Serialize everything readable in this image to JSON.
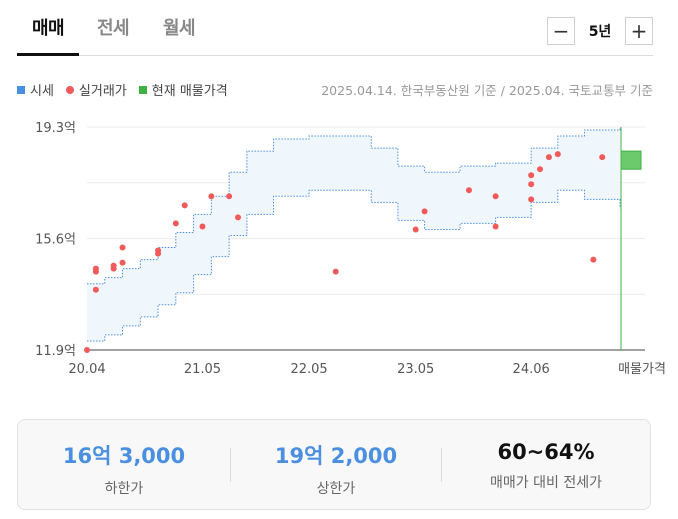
{
  "tabs": [
    {
      "label": "매매",
      "active": true
    },
    {
      "label": "전세",
      "active": false
    },
    {
      "label": "월세",
      "active": false
    }
  ],
  "period": {
    "minus_label": "−",
    "value_label": "5년",
    "plus_label": "+"
  },
  "legend": [
    {
      "label": "시세",
      "color": "#4a90e2",
      "shape": "square"
    },
    {
      "label": "실거래가",
      "color": "#f05a5a",
      "shape": "circle"
    },
    {
      "label": "현재 매물가격",
      "color": "#3cb043",
      "shape": "square"
    }
  ],
  "source_note": "2025.04.14. 한국부동산원 기준 / 2025.04. 국토교통부 기준",
  "chart_data": {
    "type": "scatter",
    "ylim": [
      11.9,
      19.3
    ],
    "y_ticks": [
      {
        "value": 19.3,
        "label": "19.3억"
      },
      {
        "value": 15.6,
        "label": "15.6억"
      },
      {
        "value": 11.9,
        "label": "11.9억"
      }
    ],
    "x_range": [
      "2020.04",
      "2025.04"
    ],
    "x_ticks": [
      {
        "value": "2020.04",
        "label": "20.04"
      },
      {
        "value": "2021.05",
        "label": "21.05"
      },
      {
        "value": "2022.05",
        "label": "22.05"
      },
      {
        "value": "2023.05",
        "label": "23.05"
      },
      {
        "value": "2024.06",
        "label": "24.06"
      }
    ],
    "x_extra_label": "매물가격",
    "band_color": "#4a90e2",
    "band": [
      {
        "x": "2020.04",
        "lower": 12.2,
        "upper": 14.1
      },
      {
        "x": "2020.06",
        "lower": 12.4,
        "upper": 14.3
      },
      {
        "x": "2020.08",
        "lower": 12.7,
        "upper": 14.6
      },
      {
        "x": "2020.10",
        "lower": 13.0,
        "upper": 14.9
      },
      {
        "x": "2020.12",
        "lower": 13.4,
        "upper": 15.3
      },
      {
        "x": "2021.02",
        "lower": 13.8,
        "upper": 15.8
      },
      {
        "x": "2021.04",
        "lower": 14.4,
        "upper": 16.4
      },
      {
        "x": "2021.06",
        "lower": 15.0,
        "upper": 17.0
      },
      {
        "x": "2021.08",
        "lower": 15.7,
        "upper": 17.8
      },
      {
        "x": "2021.10",
        "lower": 16.4,
        "upper": 18.5
      },
      {
        "x": "2022.01",
        "lower": 17.0,
        "upper": 18.9
      },
      {
        "x": "2022.05",
        "lower": 17.2,
        "upper": 19.0
      },
      {
        "x": "2022.09",
        "lower": 17.2,
        "upper": 19.0
      },
      {
        "x": "2022.12",
        "lower": 16.8,
        "upper": 18.6
      },
      {
        "x": "2023.03",
        "lower": 16.2,
        "upper": 18.0
      },
      {
        "x": "2023.06",
        "lower": 15.9,
        "upper": 17.8
      },
      {
        "x": "2023.10",
        "lower": 16.1,
        "upper": 18.0
      },
      {
        "x": "2024.02",
        "lower": 16.3,
        "upper": 18.1
      },
      {
        "x": "2024.06",
        "lower": 16.8,
        "upper": 18.6
      },
      {
        "x": "2024.09",
        "lower": 17.2,
        "upper": 19.0
      },
      {
        "x": "2024.12",
        "lower": 16.9,
        "upper": 19.2
      },
      {
        "x": "2025.04",
        "lower": 16.6,
        "upper": 19.3
      }
    ],
    "transactions_color": "#f05a5a",
    "transactions": [
      {
        "x": "2020.04",
        "y": 11.9
      },
      {
        "x": "2020.05",
        "y": 13.9
      },
      {
        "x": "2020.05",
        "y": 14.5
      },
      {
        "x": "2020.05",
        "y": 14.6
      },
      {
        "x": "2020.07",
        "y": 14.6
      },
      {
        "x": "2020.07",
        "y": 14.7
      },
      {
        "x": "2020.08",
        "y": 14.8
      },
      {
        "x": "2020.08",
        "y": 15.3
      },
      {
        "x": "2020.12",
        "y": 15.1
      },
      {
        "x": "2020.12",
        "y": 15.2
      },
      {
        "x": "2021.02",
        "y": 16.1
      },
      {
        "x": "2021.03",
        "y": 16.7
      },
      {
        "x": "2021.05",
        "y": 16.0
      },
      {
        "x": "2021.06",
        "y": 17.0
      },
      {
        "x": "2021.08",
        "y": 17.0
      },
      {
        "x": "2021.09",
        "y": 16.3
      },
      {
        "x": "2022.08",
        "y": 14.5
      },
      {
        "x": "2023.05",
        "y": 15.9
      },
      {
        "x": "2023.06",
        "y": 16.5
      },
      {
        "x": "2023.11",
        "y": 17.2
      },
      {
        "x": "2024.02",
        "y": 17.0
      },
      {
        "x": "2024.02",
        "y": 16.0
      },
      {
        "x": "2024.06",
        "y": 16.9
      },
      {
        "x": "2024.06",
        "y": 17.4
      },
      {
        "x": "2024.06",
        "y": 17.7
      },
      {
        "x": "2024.07",
        "y": 17.9
      },
      {
        "x": "2024.08",
        "y": 18.3
      },
      {
        "x": "2024.09",
        "y": 18.4
      },
      {
        "x": "2025.01",
        "y": 14.9
      },
      {
        "x": "2025.02",
        "y": 18.3
      }
    ],
    "listing_color": "#3cb043",
    "listing": {
      "low": 17.9,
      "high": 18.5
    }
  },
  "summary": [
    {
      "value": "16억 3,000",
      "label": "하한가",
      "accent": true
    },
    {
      "value": "19억 2,000",
      "label": "상한가",
      "accent": true
    },
    {
      "value": "60~64%",
      "label": "매매가 대비 전세가",
      "accent": false
    }
  ]
}
